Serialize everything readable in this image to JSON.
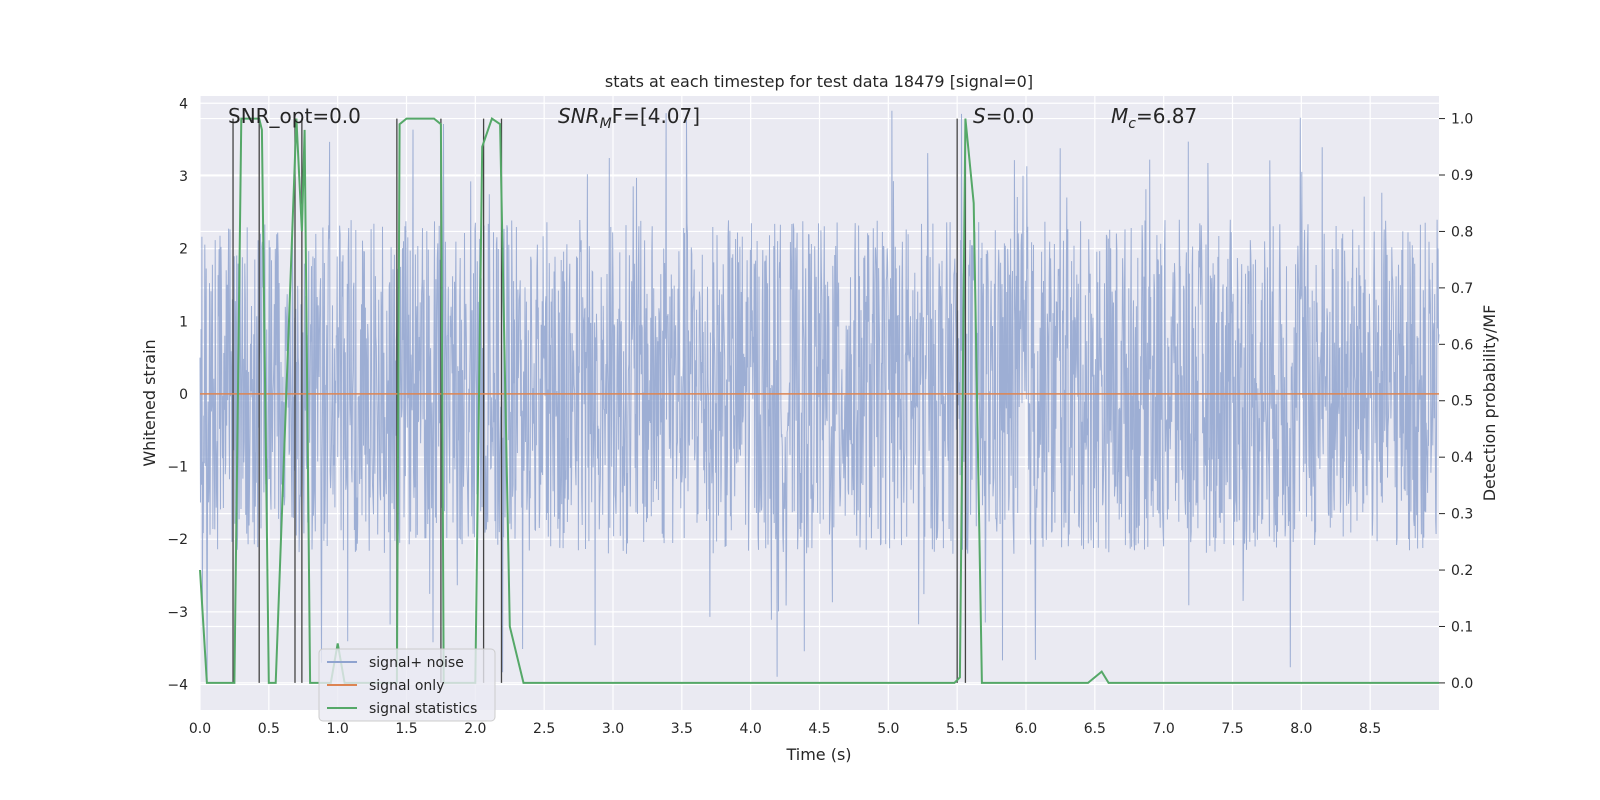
{
  "chart_data": {
    "type": "line",
    "title": "stats at each timestep for test data 18479 [signal=0]",
    "xlabel": "Time (s)",
    "ylabel": "Whitened strain",
    "ylabel_right": "Detection probability/MF",
    "xlim": [
      0.0,
      9.0
    ],
    "ylim": [
      -4.35,
      4.1
    ],
    "ylim_right": [
      -0.048,
      1.04
    ],
    "x_ticks": [
      "0.0",
      "0.5",
      "1.0",
      "1.5",
      "2.0",
      "2.5",
      "3.0",
      "3.5",
      "4.0",
      "4.5",
      "5.0",
      "5.5",
      "6.0",
      "6.5",
      "7.0",
      "7.5",
      "8.0",
      "8.5"
    ],
    "y_ticks": [
      "4",
      "3",
      "2",
      "1",
      "0",
      "−1",
      "−2",
      "−3",
      "−4"
    ],
    "y_ticks_right": [
      "1.0",
      "0.9",
      "0.8",
      "0.7",
      "0.6",
      "0.5",
      "0.4",
      "0.3",
      "0.2",
      "0.1",
      "0.0"
    ],
    "grid": true,
    "legend_placement": "lower-left",
    "annotations": {
      "snr_opt": "SNR_opt=0.0",
      "snr_mf_sym": "SNR",
      "snr_mf_sub": "M",
      "snr_mf_rest": "F=[4.07]",
      "s_sym": "S",
      "s_rest": "=0.0",
      "mc_sym": "M",
      "mc_sub": "c",
      "mc_rest": "=6.87"
    },
    "series": [
      {
        "name": "signal+ noise",
        "color": "#8fa3cf",
        "kind": "noise",
        "envelope_typical": [
          -2.2,
          2.4
        ],
        "envelope_extreme": [
          -3.95,
          3.9
        ]
      },
      {
        "name": "signal only",
        "color": "#dd8452",
        "x": [
          0.0,
          9.0
        ],
        "y": [
          0.0,
          0.0
        ]
      },
      {
        "name": "signal statistics",
        "color": "#55a868",
        "axis": "right",
        "x": [
          0.0,
          0.05,
          0.25,
          0.3,
          0.43,
          0.45,
          0.5,
          0.55,
          0.7,
          0.74,
          0.76,
          0.8,
          0.95,
          1.0,
          1.05,
          1.43,
          1.45,
          1.5,
          1.7,
          1.75,
          1.77,
          2.0,
          2.05,
          2.12,
          2.18,
          2.25,
          2.35,
          2.45,
          5.48,
          5.52,
          5.56,
          5.62,
          5.68,
          6.45,
          6.55,
          6.6,
          6.7,
          7.95,
          8.05,
          8.2,
          9.0
        ],
        "y": [
          0.2,
          0.0,
          0.0,
          1.0,
          1.0,
          0.98,
          0.0,
          0.0,
          1.0,
          0.8,
          0.98,
          0.0,
          0.0,
          0.07,
          0.0,
          0.0,
          0.99,
          1.0,
          1.0,
          0.99,
          0.0,
          0.0,
          0.95,
          1.0,
          0.99,
          0.1,
          0.0,
          0.0,
          0.0,
          0.01,
          1.0,
          0.85,
          0.0,
          0.0,
          0.02,
          0.0,
          0.0,
          0.0,
          0.0,
          0.0,
          0.0
        ]
      }
    ],
    "vertical_markers_x": [
      0.24,
      0.43,
      0.69,
      0.74,
      1.43,
      1.75,
      2.06,
      2.19,
      5.5,
      5.56
    ]
  }
}
